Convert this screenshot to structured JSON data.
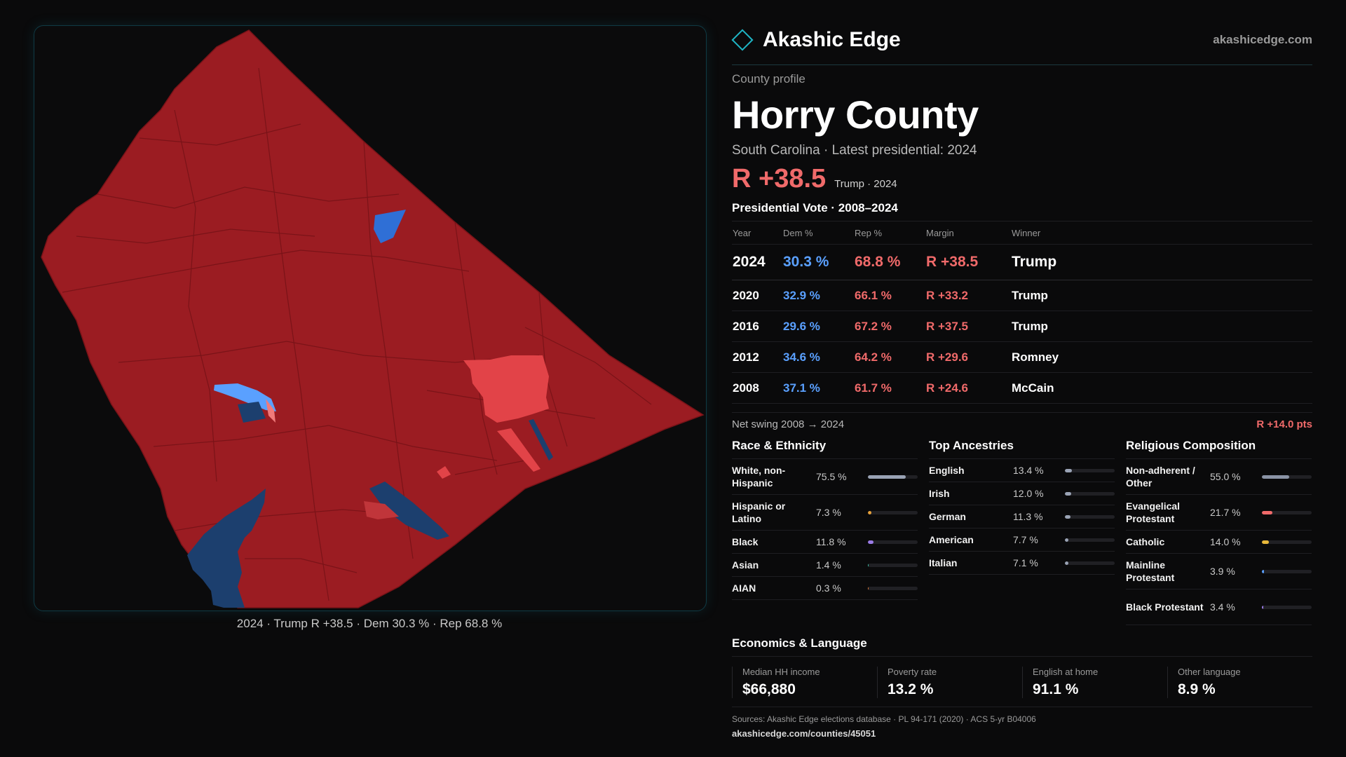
{
  "brand": {
    "name": "Akashic Edge",
    "url": "akashicedge.com"
  },
  "profile": {
    "eyebrow": "County profile",
    "county": "Horry County",
    "subtitle": "South Carolina · Latest presidential: 2024",
    "headline_margin": "R +38.5",
    "headline_winner": "Trump · 2024"
  },
  "map": {
    "caption": "2024 · Trump R +38.5 · Dem 30.3 % · Rep 68.8 %",
    "colors": {
      "strong_rep": "#9b1c22",
      "lean_rep": "#e24348",
      "strong_dem": "#1c3f6e",
      "dem": "#2f6fd6",
      "lean_dem": "#5aa0ff",
      "border": "#7a1318"
    }
  },
  "votes": {
    "title": "Presidential Vote · 2008–2024",
    "headers": {
      "year": "Year",
      "dem": "Dem %",
      "rep": "Rep %",
      "margin": "Margin",
      "winner": "Winner"
    },
    "rows": [
      {
        "year": "2024",
        "dem": "30.3 %",
        "rep": "68.8 %",
        "margin": "R +38.5",
        "winner": "Trump"
      },
      {
        "year": "2020",
        "dem": "32.9 %",
        "rep": "66.1 %",
        "margin": "R +33.2",
        "winner": "Trump"
      },
      {
        "year": "2016",
        "dem": "29.6 %",
        "rep": "67.2 %",
        "margin": "R +37.5",
        "winner": "Trump"
      },
      {
        "year": "2012",
        "dem": "34.6 %",
        "rep": "64.2 %",
        "margin": "R +29.6",
        "winner": "Romney"
      },
      {
        "year": "2008",
        "dem": "37.1 %",
        "rep": "61.7 %",
        "margin": "R +24.6",
        "winner": "McCain"
      }
    ],
    "swing_label": "Net swing 2008 → 2024",
    "swing_value": "R +14.0 pts"
  },
  "race": {
    "title": "Race & Ethnicity",
    "items": [
      {
        "label": "White, non-Hispanic",
        "pct": "75.5 %",
        "value": 75.5,
        "color": "#9aa3b5"
      },
      {
        "label": "Hispanic or Latino",
        "pct": "7.3 %",
        "value": 7.3,
        "color": "#e8a23a"
      },
      {
        "label": "Black",
        "pct": "11.8 %",
        "value": 11.8,
        "color": "#9b7be6"
      },
      {
        "label": "Asian",
        "pct": "1.4 %",
        "value": 1.4,
        "color": "#3fc2a8"
      },
      {
        "label": "AIAN",
        "pct": "0.3 %",
        "value": 0.3,
        "color": "#e07a3a"
      }
    ]
  },
  "ancestry": {
    "title": "Top Ancestries",
    "items": [
      {
        "label": "English",
        "pct": "13.4 %",
        "value": 13.4,
        "color": "#9aa3b5"
      },
      {
        "label": "Irish",
        "pct": "12.0 %",
        "value": 12.0,
        "color": "#9aa3b5"
      },
      {
        "label": "German",
        "pct": "11.3 %",
        "value": 11.3,
        "color": "#9aa3b5"
      },
      {
        "label": "American",
        "pct": "7.7 %",
        "value": 7.7,
        "color": "#9aa3b5"
      },
      {
        "label": "Italian",
        "pct": "7.1 %",
        "value": 7.1,
        "color": "#9aa3b5"
      }
    ]
  },
  "religion": {
    "title": "Religious Composition",
    "items": [
      {
        "label": "Non-adherent / Other",
        "pct": "55.0 %",
        "value": 55.0,
        "color": "#8a93a5"
      },
      {
        "label": "Evangelical Protestant",
        "pct": "21.7 %",
        "value": 21.7,
        "color": "#f06a6a"
      },
      {
        "label": "Catholic",
        "pct": "14.0 %",
        "value": 14.0,
        "color": "#e8b83a"
      },
      {
        "label": "Mainline Protestant",
        "pct": "3.9 %",
        "value": 3.9,
        "color": "#5aa0ff"
      },
      {
        "label": "Black Protestant",
        "pct": "3.4 %",
        "value": 3.4,
        "color": "#9b7be6"
      }
    ]
  },
  "economics": {
    "title": "Economics & Language",
    "items": [
      {
        "label": "Median HH income",
        "value": "$66,880"
      },
      {
        "label": "Poverty rate",
        "value": "13.2 %"
      },
      {
        "label": "English at home",
        "value": "91.1 %"
      },
      {
        "label": "Other language",
        "value": "8.9 %"
      }
    ]
  },
  "sources": {
    "text": "Sources: Akashic Edge elections database · PL 94-171 (2020) · ACS 5-yr B04006",
    "url": "akashicedge.com/counties/45051"
  }
}
